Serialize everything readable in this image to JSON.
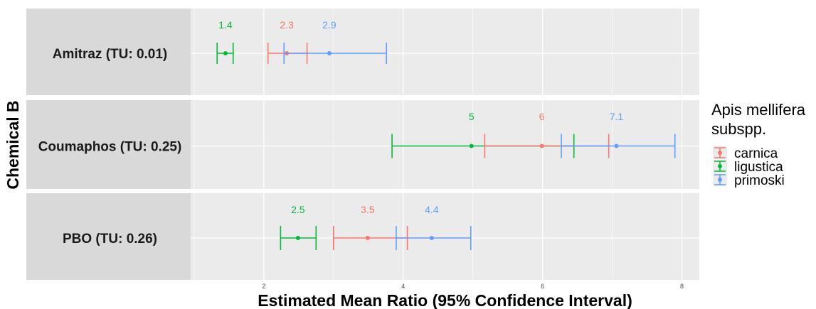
{
  "chart_data": {
    "type": "errorbar",
    "xlabel": "Estimated Mean Ratio (95% Confidence Interval)",
    "ylabel": "Chemical B",
    "xlim": [
      0.95,
      8.25
    ],
    "xticks": [
      2,
      4,
      6,
      8
    ],
    "grid": true,
    "legend": {
      "title_lines": [
        "Apis mellifera",
        "subspp."
      ],
      "position": "right",
      "items": [
        {
          "name": "carnica",
          "color": "#F8766D"
        },
        {
          "name": "ligustica",
          "color": "#00BA38"
        },
        {
          "name": "primoski",
          "color": "#619CFF"
        }
      ]
    },
    "panels": [
      {
        "label": "Amitraz (TU: 0.01)",
        "points": [
          {
            "series": "ligustica",
            "estimate": 1.45,
            "lower": 1.33,
            "upper": 1.56,
            "label": "1.4"
          },
          {
            "series": "carnica",
            "estimate": 2.33,
            "lower": 2.06,
            "upper": 2.62,
            "label": "2.3"
          },
          {
            "series": "primoski",
            "estimate": 2.94,
            "lower": 2.29,
            "upper": 3.76,
            "label": "2.9"
          }
        ]
      },
      {
        "label": "Coumaphos (TU: 0.25)",
        "points": [
          {
            "series": "ligustica",
            "estimate": 4.98,
            "lower": 3.84,
            "upper": 6.45,
            "label": "5"
          },
          {
            "series": "carnica",
            "estimate": 5.99,
            "lower": 5.17,
            "upper": 6.95,
            "label": "6"
          },
          {
            "series": "primoski",
            "estimate": 7.06,
            "lower": 6.27,
            "upper": 7.9,
            "label": "7.1"
          }
        ]
      },
      {
        "label": "PBO (TU: 0.26)",
        "points": [
          {
            "series": "ligustica",
            "estimate": 2.49,
            "lower": 2.24,
            "upper": 2.75,
            "label": "2.5"
          },
          {
            "series": "carnica",
            "estimate": 3.49,
            "lower": 3.0,
            "upper": 4.06,
            "label": "3.5"
          },
          {
            "series": "primoski",
            "estimate": 4.41,
            "lower": 3.9,
            "upper": 4.97,
            "label": "4.4"
          }
        ]
      }
    ]
  },
  "colors": {
    "panel_bg": "#EBEBEB",
    "strip_bg": "#D9D9D9",
    "grid": "#FFFFFF"
  }
}
